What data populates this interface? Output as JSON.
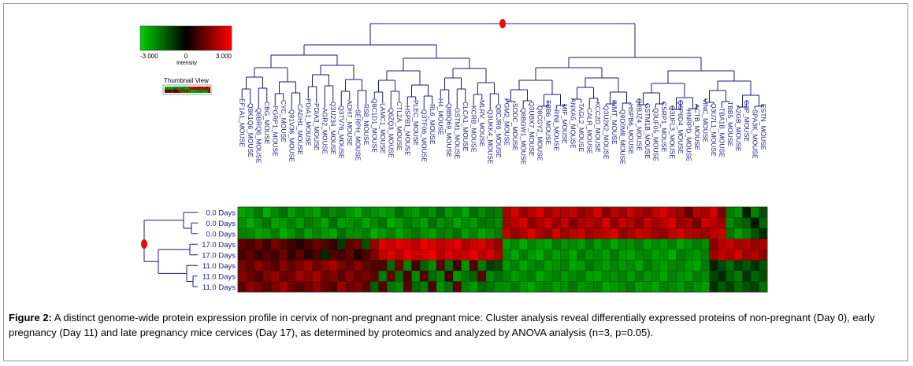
{
  "chart_data": {
    "type": "heatmap",
    "colorscale": {
      "low_color": "#00d000",
      "mid_color": "#000000",
      "high_color": "#ff0000",
      "min_label": "-3.000",
      "mid_label": "0",
      "max_label": "3.000",
      "range": [
        -3,
        3
      ],
      "label": "Intensity"
    },
    "thumbnail_label": "Thumbnail View",
    "dendrogram_color": "#1a1a80",
    "marker_color": "#e01010",
    "columns": [
      "EF1A1_MOUSE",
      "Q8K1Q6_MOUSE",
      "Q8BRQ6_MOUSE",
      "CBG_MOUSE",
      "PGRP1_MOUSE",
      "CYC_MOUSE",
      "Q91V36_MOUSE",
      "CADH1_MOUSE",
      "PDIA1_MOUSE",
      "PDIA3_MOUSE",
      "AGR2_MOUSE",
      "Q3U234_MOUSE",
      "Q3TV76_MOUSE",
      "ADH7_MOUSE",
      "SERPH_MOUSE",
      "RS8_MOUSE",
      "Q8C1D1_MOUSE",
      "LAMC1_MOUSE",
      "Q6ZQ3_MOUSE",
      "CTL2A_MOUSE",
      "HSPB1_MOUSE",
      "PLEC_MOUSE",
      "Q3TF06_MOUSE",
      "RL6_MOUSE",
      "H4_MOUSE",
      "Q8BQ69_MOUSE",
      "GSTM1_MOUSE",
      "CLCA1_MOUSE",
      "KCRB_MOUSE",
      "MLRV_MOUSE",
      "Q3UKK4_MOUSE",
      "Q8CJR6_MOUSE",
      "PGM2_MOUSE",
      "SODC_MOUSE",
      "Q8BGW1_MOUSE",
      "Q3UBX7_MOUSE",
      "Q8CGY2_MOUSE",
      "TBB6_MOUSE",
      "RINI_MOUSE",
      "MIF_MOUSE",
      "ANXA5_MOUSE",
      "TAGL2_MOUSE",
      "CALR_MOUSE",
      "KCC2D_MOUSE",
      "Q3U2K2_MOUSE",
      "INMT_MOUSE",
      "Q9D0M8_MOUSE",
      "HSPB6_MOUSE",
      "Q8BJZ4_MOUSE",
      "GSTM1B_MOUSE",
      "Q3UF05_MOUSE",
      "CSRP1_MOUSE",
      "Q3UFL3_MOUSE",
      "Q6P6D4_MOUSE",
      "HNRPD_MOUSE",
      "ACTB_MOUSE",
      "VINC_MOUSE",
      "Q3U7L1_MOUSE",
      "TBA1B_MOUSE",
      "TBB5_MOUSE",
      "A2GB_MOUSE",
      "G3P_MOUSE",
      "SPA3K_MOUSE",
      "ESTN_MOUSE"
    ],
    "rows": [
      "0.0 Days",
      "0.0 Days",
      "0.0 Days",
      "17.0 Days",
      "17.0 Days",
      "11.0 Days",
      "11.0 Days",
      "11.0 Days"
    ],
    "values": [
      [
        -2.4,
        -2.2,
        -1.8,
        -2.5,
        -2.0,
        -1.6,
        -2.3,
        -1.9,
        -2.1,
        -2.4,
        -1.7,
        -2.0,
        -1.8,
        -2.2,
        -2.5,
        -1.9,
        -2.1,
        -2.4,
        -2.2,
        -1.6,
        -2.0,
        -2.3,
        -1.8,
        -2.1,
        -1.5,
        -2.2,
        -1.9,
        -2.4,
        -1.6,
        -2.0,
        -1.7,
        -1.9,
        2.0,
        2.5,
        1.8,
        2.2,
        2.6,
        1.9,
        2.3,
        2.1,
        2.4,
        1.7,
        2.0,
        2.5,
        1.6,
        2.2,
        1.9,
        2.4,
        2.0,
        1.8,
        2.3,
        2.6,
        2.1,
        1.9,
        1.2,
        2.2,
        2.0,
        2.5,
        1.5,
        -1.8,
        -2.1,
        -0.4,
        -1.9,
        -1.1
      ],
      [
        -2.1,
        -2.5,
        -2.0,
        -1.7,
        -2.4,
        -2.2,
        -1.9,
        -2.3,
        -1.8,
        -2.0,
        -2.4,
        -1.6,
        -2.2,
        -2.1,
        -1.9,
        -2.4,
        -2.0,
        -1.7,
        -2.5,
        -2.2,
        -1.8,
        -2.0,
        -2.3,
        -1.6,
        -2.1,
        -1.9,
        -2.4,
        -2.0,
        -2.2,
        -1.7,
        -1.8,
        -2.0,
        1.9,
        2.2,
        2.5,
        1.6,
        2.1,
        2.4,
        1.8,
        2.3,
        1.5,
        2.0,
        2.2,
        1.9,
        2.5,
        1.7,
        2.4,
        2.1,
        1.6,
        2.3,
        1.9,
        2.2,
        2.6,
        1.8,
        2.0,
        1.4,
        2.4,
        2.1,
        1.9,
        -2.0,
        -1.6,
        -1.4,
        -0.3,
        -1.5
      ],
      [
        -1.9,
        -2.0,
        -2.4,
        -2.2,
        -1.8,
        -2.5,
        -2.1,
        -1.7,
        -2.3,
        -1.9,
        -2.2,
        -2.4,
        -1.6,
        -2.0,
        -2.1,
        -1.8,
        -2.5,
        -2.2,
        -1.9,
        -2.4,
        -2.0,
        -1.7,
        -2.1,
        -2.3,
        -1.8,
        -2.0,
        -1.6,
        -2.2,
        -1.9,
        -2.4,
        -2.1,
        -1.8,
        2.3,
        1.8,
        2.1,
        2.6,
        2.0,
        1.7,
        2.5,
        1.9,
        2.2,
        2.4,
        1.8,
        2.1,
        2.3,
        2.6,
        1.7,
        2.0,
        2.4,
        2.2,
        1.9,
        1.7,
        2.3,
        2.5,
        2.1,
        2.0,
        1.8,
        2.2,
        2.4,
        -1.7,
        -2.3,
        -1.9,
        -1.2,
        -0.6
      ],
      [
        1.1,
        0.9,
        1.3,
        0.8,
        1.4,
        1.0,
        0.7,
        0.5,
        0.9,
        1.2,
        1.0,
        0.6,
        -0.8,
        1.1,
        1.3,
        -1.2,
        1.8,
        2.6,
        2.4,
        2.7,
        2.5,
        2.2,
        2.8,
        2.6,
        2.3,
        2.5,
        2.7,
        2.1,
        2.4,
        2.6,
        2.2,
        1.8,
        -2.3,
        -2.0,
        -2.5,
        -1.9,
        -2.2,
        -2.4,
        -1.8,
        -2.1,
        -2.0,
        -2.3,
        -1.7,
        -2.2,
        -1.9,
        -2.4,
        -2.0,
        -2.1,
        -1.8,
        -2.3,
        -2.0,
        -2.2,
        -1.9,
        -2.4,
        -2.1,
        -1.8,
        -2.0,
        1.5,
        2.1,
        2.4,
        2.0,
        2.2,
        1.8,
        2.0
      ],
      [
        0.9,
        1.2,
        0.7,
        1.0,
        0.8,
        1.3,
        0.6,
        1.1,
        0.5,
        0.9,
        -0.6,
        1.0,
        0.8,
        1.2,
        0.4,
        0.9,
        1.5,
        2.3,
        2.6,
        2.2,
        2.7,
        2.4,
        2.5,
        2.8,
        2.1,
        2.6,
        2.3,
        2.4,
        2.7,
        2.2,
        2.5,
        2.0,
        -2.0,
        -2.4,
        -1.8,
        -2.2,
        -2.5,
        -1.9,
        -2.3,
        -2.0,
        -2.4,
        -1.7,
        -2.1,
        -2.0,
        -2.3,
        -1.8,
        -2.2,
        -2.4,
        -2.0,
        -1.9,
        -2.3,
        -2.1,
        -2.5,
        -1.8,
        -2.0,
        -2.2,
        -1.9,
        1.8,
        2.3,
        2.0,
        2.5,
        1.9,
        2.2,
        1.7
      ],
      [
        1.4,
        1.1,
        1.7,
        1.3,
        1.0,
        1.6,
        1.2,
        1.5,
        1.9,
        1.3,
        1.7,
        2.0,
        1.4,
        1.1,
        1.6,
        1.2,
        1.0,
        0.9,
        -1.5,
        1.3,
        -1.9,
        0.8,
        -1.4,
        -2.0,
        1.1,
        -1.6,
        0.7,
        -2.1,
        1.0,
        -1.8,
        -0.9,
        -1.1,
        -2.2,
        -1.9,
        -2.4,
        -2.0,
        -1.8,
        -2.3,
        -2.1,
        -1.9,
        -2.4,
        -2.2,
        -1.7,
        -2.0,
        -2.3,
        -1.9,
        -2.2,
        -2.0,
        -2.4,
        -1.8,
        -2.1,
        -2.3,
        -2.0,
        -1.9,
        -2.2,
        -2.4,
        -1.8,
        -0.5,
        -1.1,
        -1.6,
        -0.9,
        -1.3,
        -0.7,
        -1.2
      ],
      [
        1.6,
        1.3,
        1.0,
        1.5,
        1.8,
        1.2,
        1.4,
        1.9,
        1.6,
        2.0,
        1.3,
        1.5,
        1.1,
        1.7,
        1.2,
        1.4,
        1.1,
        -1.8,
        1.2,
        -1.6,
        0.9,
        -2.0,
        1.0,
        -1.5,
        -1.9,
        0.8,
        -2.2,
        -1.7,
        -1.4,
        1.1,
        -2.0,
        -1.6,
        -1.9,
        -2.3,
        -2.0,
        -1.8,
        -2.4,
        -2.1,
        -1.9,
        -2.2,
        -2.0,
        -1.8,
        -2.3,
        -2.4,
        -2.0,
        -2.1,
        -1.9,
        -2.3,
        -1.8,
        -2.2,
        -2.0,
        -2.4,
        -1.9,
        -2.1,
        -2.3,
        -1.8,
        -2.0,
        -1.0,
        -0.6,
        -1.4,
        -1.8,
        -0.8,
        -1.5,
        -1.1
      ],
      [
        1.2,
        1.7,
        1.4,
        1.1,
        1.5,
        1.9,
        1.3,
        1.0,
        1.4,
        1.7,
        1.2,
        1.0,
        1.8,
        1.3,
        1.5,
        1.1,
        -1.4,
        1.0,
        -1.7,
        -2.0,
        1.1,
        -1.5,
        -1.8,
        0.9,
        -2.1,
        -1.6,
        1.0,
        -1.9,
        -2.2,
        -1.5,
        -1.7,
        -2.0,
        -2.1,
        -1.8,
        -2.2,
        -2.4,
        -2.0,
        -1.9,
        -2.3,
        -2.1,
        -1.7,
        -2.2,
        -2.0,
        -1.9,
        -2.4,
        -2.2,
        -2.0,
        -1.8,
        -2.3,
        -2.1,
        -2.4,
        -1.9,
        -2.0,
        -2.2,
        -1.8,
        -2.1,
        -2.3,
        -0.7,
        -1.3,
        -0.9,
        -1.6,
        -1.2,
        -1.0,
        -1.7
      ]
    ]
  },
  "caption": {
    "figure_label": "Figure 2:",
    "text": " A distinct genome-wide protein expression profile in cervix of non-pregnant and pregnant mice: Cluster analysis reveal differentially expressed proteins of non-pregnant (Day 0), early pregnancy (Day 11) and late pregnancy mice cervices (Day 17), as determined by proteomics and analyzed by ANOVA analysis (n=3, p=0.05)."
  }
}
